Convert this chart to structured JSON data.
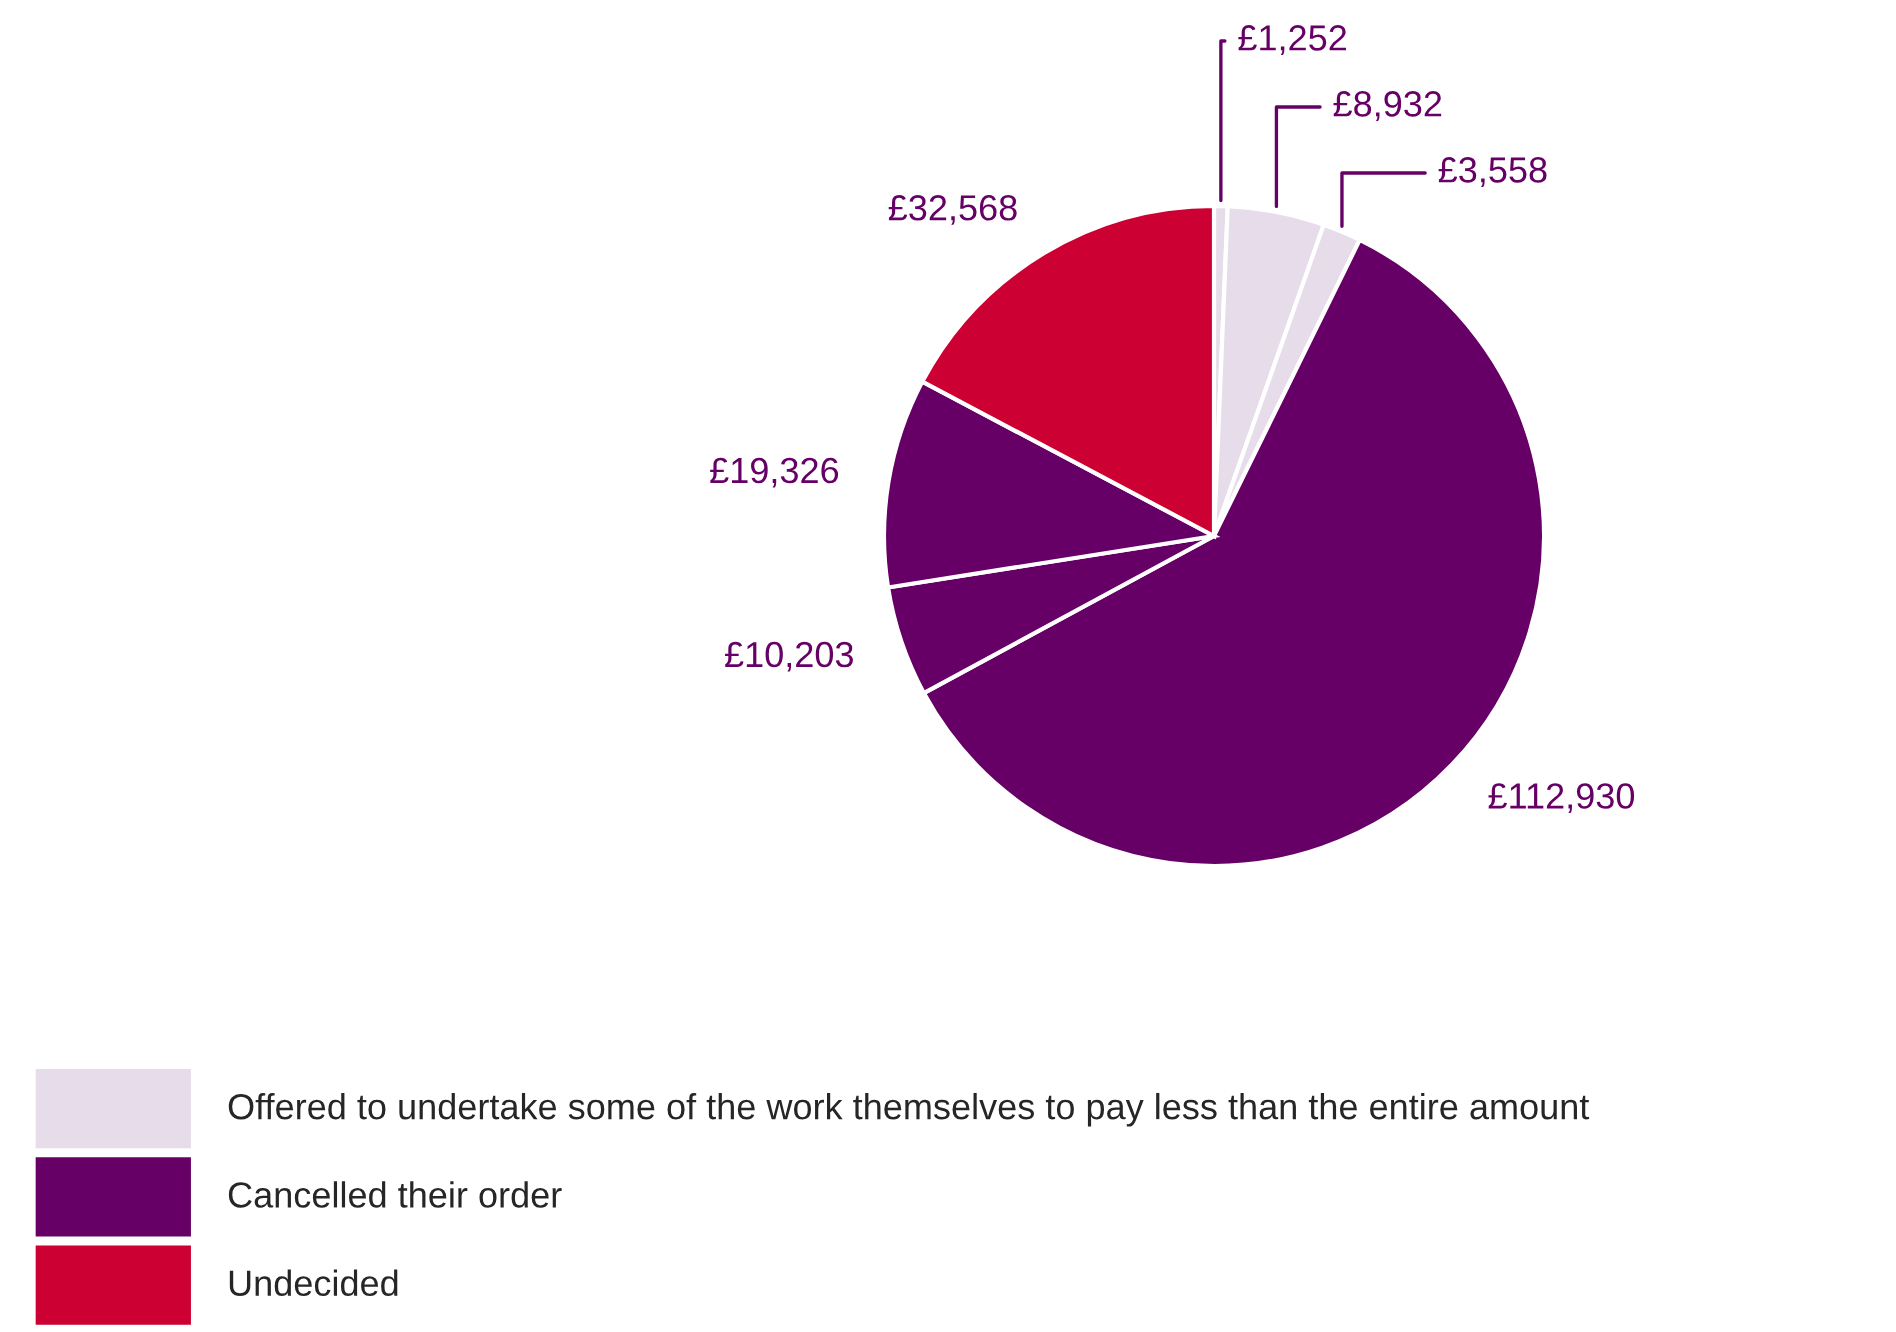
{
  "chart_data": {
    "type": "pie",
    "categories": [
      "Offered to undertake some of the work themselves to pay less than the entire amount",
      null,
      null,
      "Cancelled their order",
      null,
      null,
      "Undecided"
    ],
    "values": [
      1252,
      8932,
      3558,
      112930,
      10203,
      19326,
      32568
    ],
    "colors": [
      "#e6dcea",
      "#e6dcea",
      "#e6dcea",
      "#660066",
      "#660066",
      "#660066",
      "#cc0033"
    ],
    "value_labels": [
      "£1,252",
      "£8,932",
      "£3,558",
      "£112,930",
      "£10,203",
      "£19,326",
      "£32,568"
    ],
    "legend": "bottom left"
  }
}
